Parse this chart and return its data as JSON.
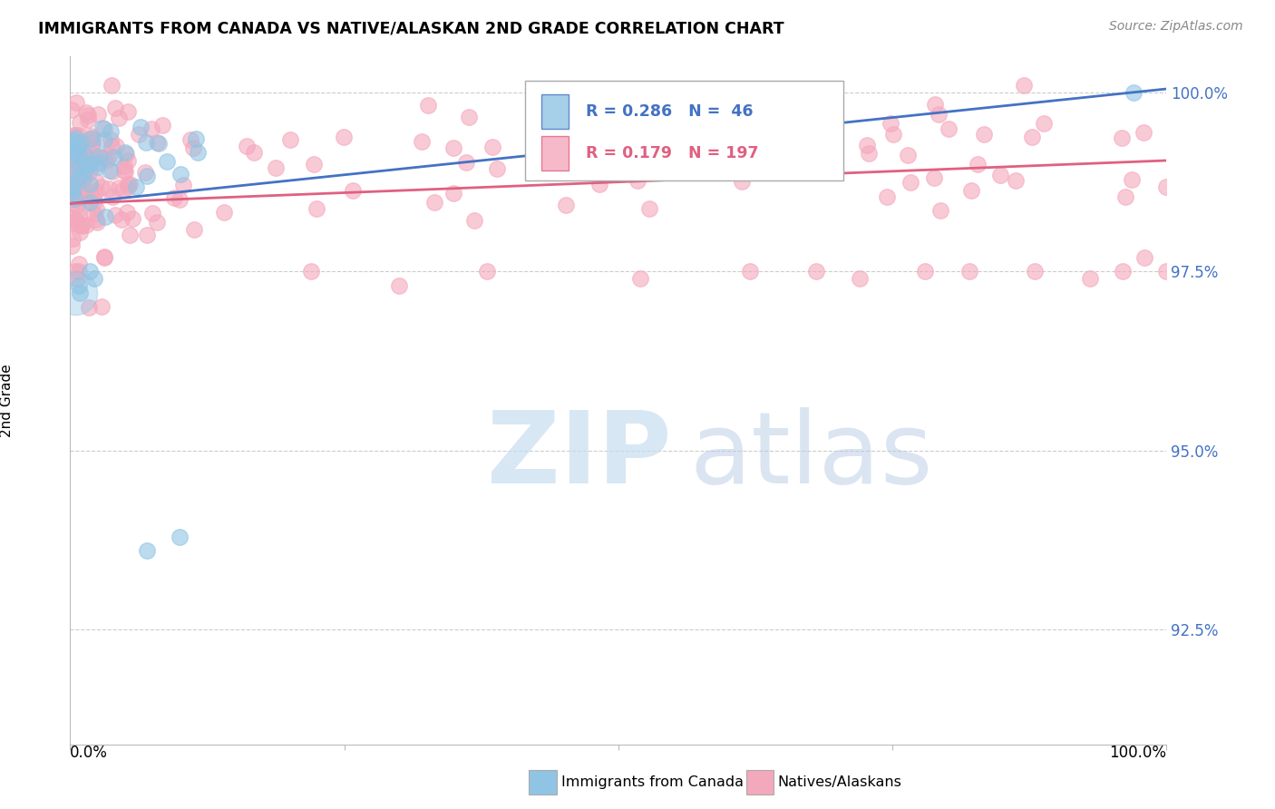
{
  "title": "IMMIGRANTS FROM CANADA VS NATIVE/ALASKAN 2ND GRADE CORRELATION CHART",
  "source": "Source: ZipAtlas.com",
  "ylabel": "2nd Grade",
  "xlim": [
    0.0,
    1.0
  ],
  "ylim": [
    0.909,
    1.005
  ],
  "yticks": [
    0.925,
    0.95,
    0.975,
    1.0
  ],
  "blue_R": 0.286,
  "blue_N": 46,
  "pink_R": 0.179,
  "pink_N": 197,
  "legend_label_blue": "Immigrants from Canada",
  "legend_label_pink": "Natives/Alaskans",
  "blue_color": "#90c4e4",
  "pink_color": "#f4a8bc",
  "blue_line_color": "#4472C4",
  "pink_line_color": "#E06080",
  "background_color": "#ffffff",
  "grid_color": "#cccccc"
}
